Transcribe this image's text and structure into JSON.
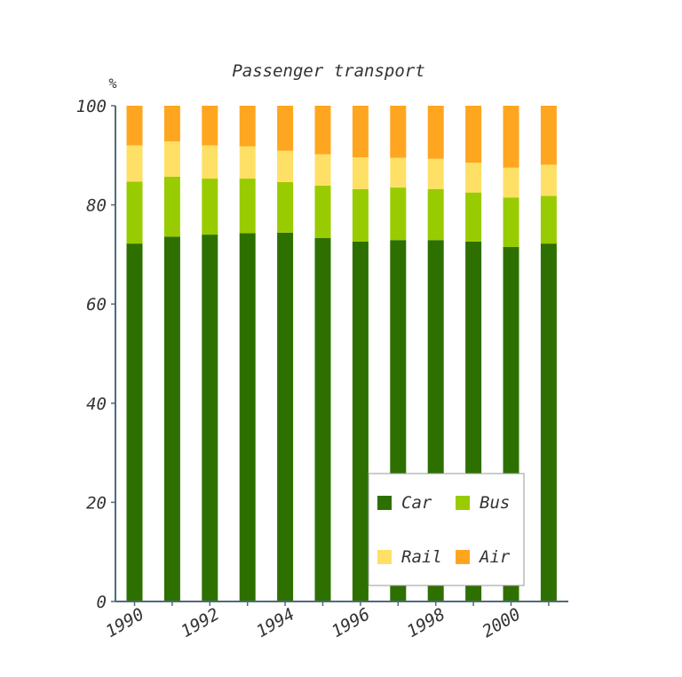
{
  "chart_data": {
    "type": "bar",
    "stacked": true,
    "title": "Passenger transport",
    "ylabel": "%",
    "xlabel": "",
    "ylim": [
      0,
      100
    ],
    "yticks": [
      0,
      20,
      40,
      60,
      80,
      100
    ],
    "categories": [
      "1990",
      "1991",
      "1992",
      "1993",
      "1994",
      "1995",
      "1996",
      "1997",
      "1998",
      "1999",
      "2000",
      "2001"
    ],
    "xtick_labels": [
      "1990",
      "1992",
      "1994",
      "1996",
      "1998",
      "2000"
    ],
    "legend_position": "bottom-right",
    "grid": false,
    "series": [
      {
        "name": "Car",
        "color": "#2e7000",
        "values": [
          72.2,
          73.6,
          74.0,
          74.3,
          74.4,
          73.3,
          72.6,
          72.9,
          72.9,
          72.6,
          71.5,
          72.2
        ]
      },
      {
        "name": "Bus",
        "color": "#99cc00",
        "values": [
          12.5,
          12.1,
          11.3,
          11.0,
          10.2,
          10.6,
          10.6,
          10.6,
          10.3,
          9.9,
          10.0,
          9.6
        ]
      },
      {
        "name": "Rail",
        "color": "#ffe066",
        "values": [
          7.3,
          7.1,
          6.7,
          6.5,
          6.3,
          6.3,
          6.4,
          6.0,
          6.1,
          6.0,
          6.0,
          6.3
        ]
      },
      {
        "name": "Air",
        "color": "#ffa620",
        "values": [
          8.0,
          7.2,
          8.0,
          8.2,
          9.1,
          9.8,
          10.4,
          10.5,
          10.7,
          11.5,
          12.5,
          11.9
        ]
      }
    ]
  }
}
